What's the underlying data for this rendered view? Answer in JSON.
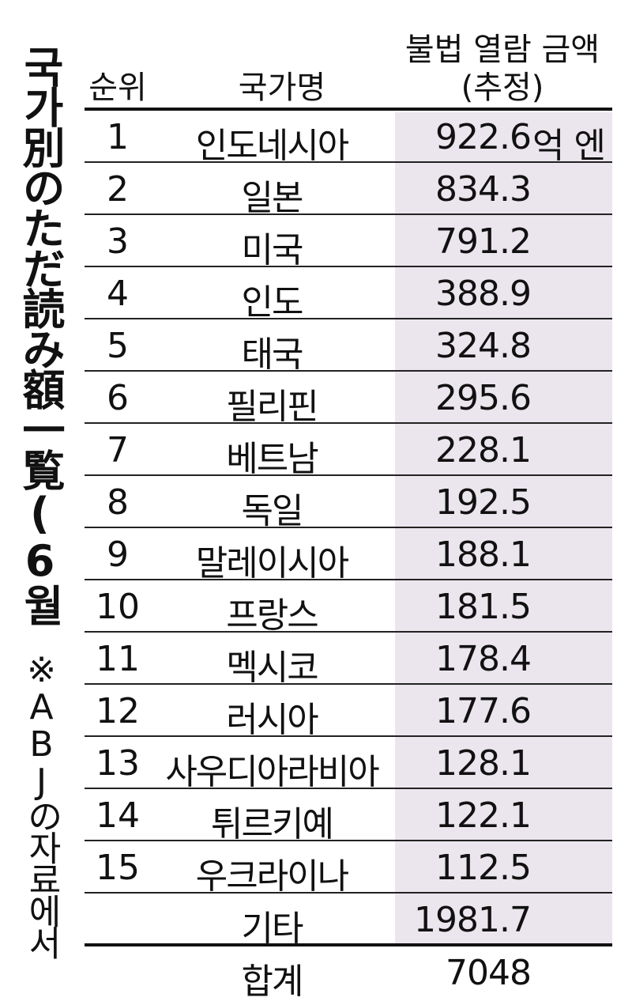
{
  "title": "국가別のただ読み額一覧(6월分)",
  "note": "※ABJの자료에서",
  "header": {
    "rank": "순위",
    "name": "국가명",
    "value_line1": "불법 열람 금액",
    "value_line2": "(추정)"
  },
  "unit": "억 엔",
  "rows": [
    {
      "rank": "1",
      "name": "인도네시아",
      "value": "922.6"
    },
    {
      "rank": "2",
      "name": "일본",
      "value": "834.3"
    },
    {
      "rank": "3",
      "name": "미국",
      "value": "791.2"
    },
    {
      "rank": "4",
      "name": "인도",
      "value": "388.9"
    },
    {
      "rank": "5",
      "name": "태국",
      "value": "324.8"
    },
    {
      "rank": "6",
      "name": "필리핀",
      "value": "295.6"
    },
    {
      "rank": "7",
      "name": "베트남",
      "value": "228.1"
    },
    {
      "rank": "8",
      "name": "독일",
      "value": "192.5"
    },
    {
      "rank": "9",
      "name": "말레이시아",
      "value": "188.1"
    },
    {
      "rank": "10",
      "name": "프랑스",
      "value": "181.5"
    },
    {
      "rank": "11",
      "name": "멕시코",
      "value": "178.4"
    },
    {
      "rank": "12",
      "name": "러시아",
      "value": "177.6"
    },
    {
      "rank": "13",
      "name": "사우디아라비아",
      "value": "128.1"
    },
    {
      "rank": "14",
      "name": "튀르키예",
      "value": "122.1"
    },
    {
      "rank": "15",
      "name": "우크라이나",
      "value": "112.5"
    },
    {
      "rank": "",
      "name": "기타",
      "value": "1981.7"
    }
  ],
  "total": {
    "name": "합계",
    "value": "7048"
  },
  "colors": {
    "value_column_shade": "#ebe5ee",
    "text": "#111111"
  }
}
